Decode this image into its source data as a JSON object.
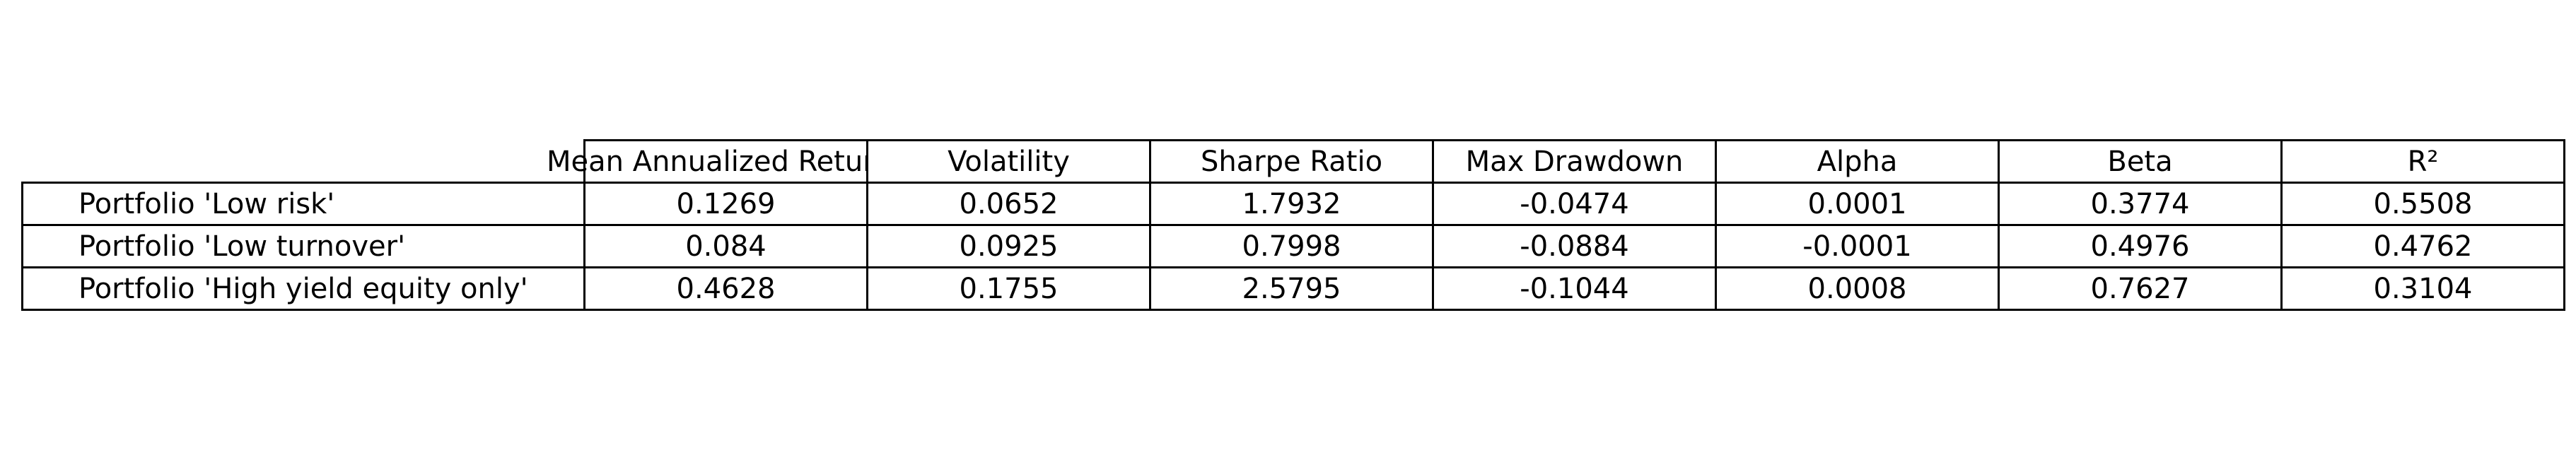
{
  "chart_data": {
    "type": "table",
    "columns": [
      "Mean Annualized Return",
      "Volatility",
      "Sharpe Ratio",
      "Max Drawdown",
      "Alpha",
      "Beta",
      "R²"
    ],
    "rows": [
      {
        "label": "Portfolio 'Low risk'",
        "values": [
          "0.1269",
          "0.0652",
          "1.7932",
          "-0.0474",
          "0.0001",
          "0.3774",
          "0.5508"
        ]
      },
      {
        "label": "Portfolio 'Low turnover'",
        "values": [
          "0.084",
          "0.0925",
          "0.7998",
          "-0.0884",
          "-0.0001",
          "0.4976",
          "0.4762"
        ]
      },
      {
        "label": "Portfolio 'High yield equity only'",
        "values": [
          "0.4628",
          "0.1755",
          "2.5795",
          "-0.1044",
          "0.0008",
          "0.7627",
          "0.3104"
        ]
      }
    ]
  }
}
